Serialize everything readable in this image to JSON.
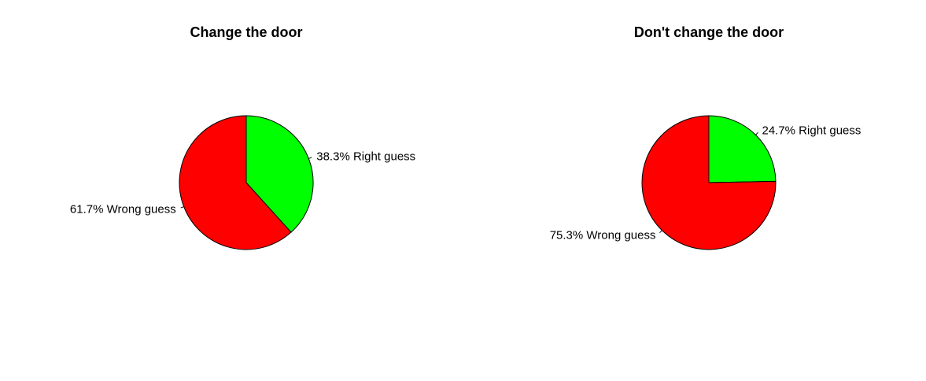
{
  "chart_data": [
    {
      "type": "pie",
      "title": "Change the door",
      "slices": [
        {
          "label": "38.3% Right guess",
          "value": 38.3,
          "color": "#00ff00"
        },
        {
          "label": "61.7% Wrong guess",
          "value": 61.7,
          "color": "#ff0000"
        }
      ],
      "start": "12 o'clock",
      "direction": "clockwise"
    },
    {
      "type": "pie",
      "title": "Don't change the door",
      "slices": [
        {
          "label": "24.7% Right guess",
          "value": 24.7,
          "color": "#00ff00"
        },
        {
          "label": "75.3% Wrong guess",
          "value": 75.3,
          "color": "#ff0000"
        }
      ],
      "start": "12 o'clock",
      "direction": "clockwise"
    }
  ]
}
